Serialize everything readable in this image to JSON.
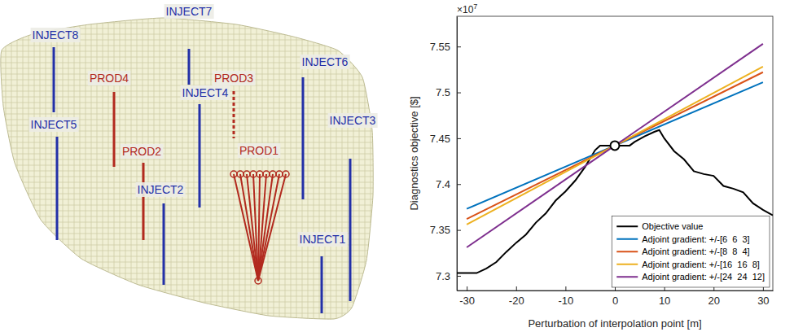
{
  "chart_data": {
    "type": "line",
    "xlabel": "Perturbation of interpolation point [m]",
    "ylabel": "Diagnostics objective [$]",
    "annotations": [
      {
        "text": "×10",
        "superscript": "7"
      }
    ],
    "xlim": [
      -32,
      32
    ],
    "xticks": [
      -30,
      -20,
      -10,
      0,
      10,
      20,
      30
    ],
    "ylim": [
      7.284,
      7.583
    ],
    "yticks": [
      7.3,
      7.35,
      7.4,
      7.45,
      7.5,
      7.55
    ],
    "legend": "lower right",
    "point": {
      "x": 0,
      "y": 7.442,
      "marker": "circle"
    },
    "series": [
      {
        "name": "Objective value",
        "color": "#000000",
        "x": [
          -32,
          -28,
          -26,
          -24,
          -22,
          -20,
          -18,
          -16,
          -14,
          -12,
          -10,
          -8,
          -6,
          -4,
          -3,
          0,
          3,
          4,
          6,
          8,
          9,
          10,
          12,
          14,
          16,
          18,
          20,
          22,
          24,
          26,
          28,
          30,
          32
        ],
        "values": [
          7.303,
          7.303,
          7.308,
          7.315,
          7.326,
          7.336,
          7.345,
          7.358,
          7.368,
          7.382,
          7.392,
          7.404,
          7.419,
          7.437,
          7.442,
          7.442,
          7.442,
          7.446,
          7.452,
          7.457,
          7.459,
          7.45,
          7.436,
          7.427,
          7.414,
          7.411,
          7.409,
          7.398,
          7.395,
          7.391,
          7.379,
          7.372,
          7.366
        ]
      },
      {
        "name": "Adjoint gradient: +/-[6  6  3]",
        "color": "#0072bd",
        "x": [
          -30,
          0,
          30
        ],
        "values": [
          7.373,
          7.442,
          7.511
        ]
      },
      {
        "name": "Adjoint gradient: +/-[8  8  4]",
        "color": "#d95319",
        "x": [
          -30,
          0,
          30
        ],
        "values": [
          7.362,
          7.442,
          7.522
        ]
      },
      {
        "name": "Adjoint gradient: +/-[16  16  8]",
        "color": "#edb120",
        "x": [
          -30,
          0,
          30
        ],
        "values": [
          7.356,
          7.442,
          7.528
        ]
      },
      {
        "name": "Adjoint gradient: +/-[24  24  12]",
        "color": "#7e2f8e",
        "x": [
          -30,
          0,
          30
        ],
        "values": [
          7.331,
          7.442,
          7.553
        ]
      }
    ]
  },
  "diagram": {
    "wells": [
      {
        "label": "INJECT8",
        "color": "#2330a8"
      },
      {
        "label": "INJECT7",
        "color": "#2330a8"
      },
      {
        "label": "INJECT6",
        "color": "#2330a8"
      },
      {
        "label": "INJECT5",
        "color": "#2330a8"
      },
      {
        "label": "INJECT4",
        "color": "#2330a8"
      },
      {
        "label": "INJECT3",
        "color": "#2330a8"
      },
      {
        "label": "INJECT2",
        "color": "#2330a8"
      },
      {
        "label": "INJECT1",
        "color": "#2330a8"
      },
      {
        "label": "PROD4",
        "color": "#b22a1e"
      },
      {
        "label": "PROD3",
        "color": "#b22a1e"
      },
      {
        "label": "PROD2",
        "color": "#b22a1e"
      },
      {
        "label": "PROD1",
        "color": "#b22a1e"
      }
    ]
  }
}
